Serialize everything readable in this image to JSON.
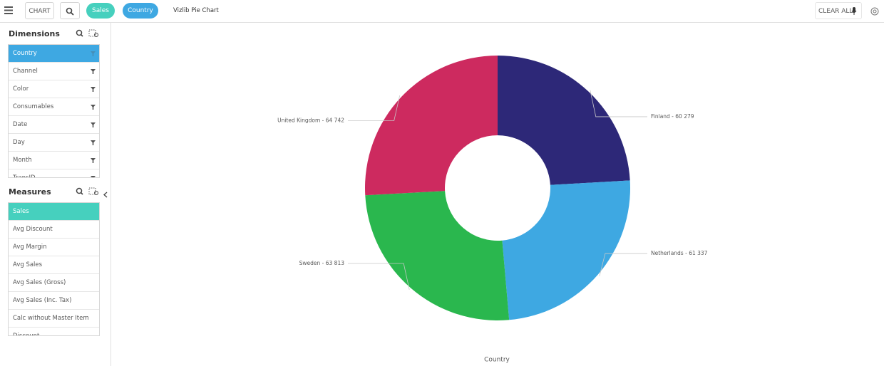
{
  "toolbar": {
    "chart_button": "CHART",
    "selections": [
      "Sales",
      "Country"
    ],
    "title": "Vizlib Pie Chart",
    "clear_all": "CLEAR ALL"
  },
  "dimensions": {
    "title": "Dimensions",
    "items": [
      "Country",
      "Channel",
      "Color",
      "Consumables",
      "Date",
      "Day",
      "Month",
      "TransID"
    ]
  },
  "measures": {
    "title": "Measures",
    "items": [
      "Sales",
      "Avg Discount",
      "Avg Margin",
      "Avg Sales",
      "Avg Sales (Gross)",
      "Avg Sales (Inc. Tax)",
      "Calc without Master Item",
      "Discount"
    ]
  },
  "chart_data": {
    "type": "donut",
    "categories": [
      "Finland",
      "Netherlands",
      "Sweden",
      "United Kingdom"
    ],
    "values": [
      60279,
      61337,
      63813,
      64742
    ],
    "value_labels": [
      "Finland - 60 279",
      "Netherlands - 61 337",
      "Sweden - 63 813",
      "United Kingdom - 64 742"
    ],
    "colors": [
      "#2d2878",
      "#3ea8e2",
      "#2ab74e",
      "#cd2a5f"
    ],
    "x_label": "Country"
  }
}
